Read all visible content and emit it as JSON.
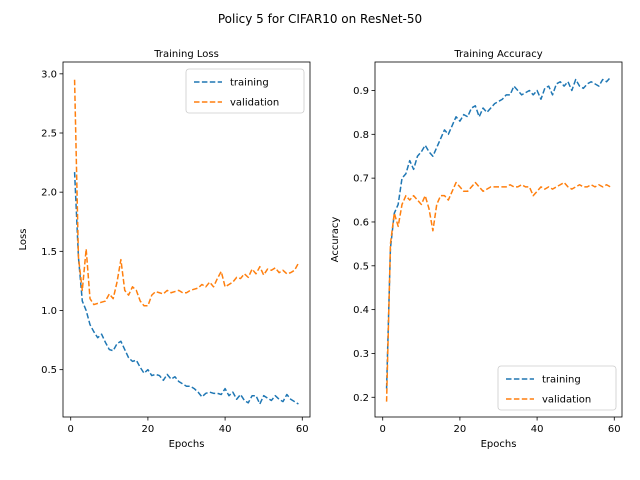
{
  "suptitle": "Policy 5 for CIFAR10 on ResNet-50",
  "chart_data": [
    {
      "type": "line",
      "title": "Training Loss",
      "xlabel": "Epochs",
      "ylabel": "Loss",
      "xlim": [
        -2,
        62
      ],
      "ylim": [
        0.1,
        3.1
      ],
      "xticks": [
        0,
        20,
        40,
        60
      ],
      "yticks": [
        0.5,
        1.0,
        1.5,
        2.0,
        2.5,
        3.0
      ],
      "xtick_labels": [
        "0",
        "20",
        "40",
        "60"
      ],
      "ytick_labels": [
        "0.5",
        "1.0",
        "1.5",
        "2.0",
        "2.5",
        "3.0"
      ],
      "legend_placement": "upper right",
      "grid": false,
      "x": [
        1,
        2,
        3,
        4,
        5,
        6,
        7,
        8,
        9,
        10,
        11,
        12,
        13,
        14,
        15,
        16,
        17,
        18,
        19,
        20,
        21,
        22,
        23,
        24,
        25,
        26,
        27,
        28,
        29,
        30,
        31,
        32,
        33,
        34,
        35,
        36,
        37,
        38,
        39,
        40,
        41,
        42,
        43,
        44,
        45,
        46,
        47,
        48,
        49,
        50,
        51,
        52,
        53,
        54,
        55,
        56,
        57,
        58,
        59
      ],
      "series": [
        {
          "name": "training",
          "color": "#1f77b4",
          "values": [
            2.17,
            1.45,
            1.08,
            1.0,
            0.88,
            0.82,
            0.77,
            0.8,
            0.73,
            0.67,
            0.66,
            0.72,
            0.74,
            0.67,
            0.6,
            0.57,
            0.58,
            0.52,
            0.47,
            0.5,
            0.45,
            0.46,
            0.45,
            0.41,
            0.46,
            0.42,
            0.44,
            0.4,
            0.38,
            0.36,
            0.36,
            0.34,
            0.31,
            0.27,
            0.3,
            0.31,
            0.3,
            0.3,
            0.29,
            0.34,
            0.28,
            0.31,
            0.25,
            0.29,
            0.24,
            0.22,
            0.28,
            0.28,
            0.21,
            0.28,
            0.26,
            0.24,
            0.28,
            0.25,
            0.23,
            0.29,
            0.25,
            0.23,
            0.21
          ]
        },
        {
          "name": "validation",
          "color": "#ff7f0e",
          "values": [
            2.95,
            1.45,
            1.17,
            1.52,
            1.1,
            1.05,
            1.06,
            1.07,
            1.08,
            1.14,
            1.1,
            1.24,
            1.43,
            1.17,
            1.13,
            1.2,
            1.17,
            1.08,
            1.04,
            1.04,
            1.13,
            1.16,
            1.15,
            1.14,
            1.17,
            1.15,
            1.16,
            1.17,
            1.15,
            1.15,
            1.17,
            1.18,
            1.19,
            1.22,
            1.2,
            1.24,
            1.2,
            1.27,
            1.33,
            1.2,
            1.22,
            1.24,
            1.28,
            1.27,
            1.31,
            1.28,
            1.35,
            1.31,
            1.37,
            1.3,
            1.35,
            1.34,
            1.36,
            1.32,
            1.34,
            1.31,
            1.32,
            1.34,
            1.4
          ]
        }
      ]
    },
    {
      "type": "line",
      "title": "Training Accuracy",
      "xlabel": "Epochs",
      "ylabel": "Accuracy",
      "xlim": [
        -2,
        62
      ],
      "ylim": [
        0.155,
        0.965
      ],
      "xticks": [
        0,
        20,
        40,
        60
      ],
      "yticks": [
        0.2,
        0.3,
        0.4,
        0.5,
        0.6,
        0.7,
        0.8,
        0.9
      ],
      "xtick_labels": [
        "0",
        "20",
        "40",
        "60"
      ],
      "ytick_labels": [
        "0.2",
        "0.3",
        "0.4",
        "0.5",
        "0.6",
        "0.7",
        "0.8",
        "0.9"
      ],
      "legend_placement": "lower right",
      "grid": false,
      "x": [
        1,
        2,
        3,
        4,
        5,
        6,
        7,
        8,
        9,
        10,
        11,
        12,
        13,
        14,
        15,
        16,
        17,
        18,
        19,
        20,
        21,
        22,
        23,
        24,
        25,
        26,
        27,
        28,
        29,
        30,
        31,
        32,
        33,
        34,
        35,
        36,
        37,
        38,
        39,
        40,
        41,
        42,
        43,
        44,
        45,
        46,
        47,
        48,
        49,
        50,
        51,
        52,
        53,
        54,
        55,
        56,
        57,
        58,
        59
      ],
      "series": [
        {
          "name": "training",
          "color": "#1f77b4",
          "values": [
            0.22,
            0.54,
            0.62,
            0.64,
            0.7,
            0.71,
            0.74,
            0.72,
            0.75,
            0.76,
            0.775,
            0.76,
            0.75,
            0.77,
            0.79,
            0.81,
            0.8,
            0.82,
            0.84,
            0.83,
            0.845,
            0.84,
            0.86,
            0.865,
            0.84,
            0.86,
            0.85,
            0.86,
            0.87,
            0.875,
            0.88,
            0.89,
            0.89,
            0.91,
            0.9,
            0.89,
            0.895,
            0.9,
            0.89,
            0.9,
            0.88,
            0.905,
            0.91,
            0.89,
            0.915,
            0.92,
            0.91,
            0.92,
            0.9,
            0.925,
            0.91,
            0.905,
            0.915,
            0.92,
            0.915,
            0.91,
            0.925,
            0.92,
            0.93
          ]
        },
        {
          "name": "validation",
          "color": "#ff7f0e",
          "values": [
            0.19,
            0.55,
            0.62,
            0.59,
            0.64,
            0.66,
            0.65,
            0.66,
            0.65,
            0.64,
            0.66,
            0.63,
            0.58,
            0.64,
            0.66,
            0.66,
            0.65,
            0.67,
            0.69,
            0.68,
            0.67,
            0.67,
            0.68,
            0.69,
            0.68,
            0.67,
            0.675,
            0.68,
            0.68,
            0.68,
            0.68,
            0.68,
            0.685,
            0.68,
            0.68,
            0.685,
            0.68,
            0.68,
            0.66,
            0.67,
            0.68,
            0.675,
            0.68,
            0.675,
            0.68,
            0.685,
            0.69,
            0.68,
            0.675,
            0.68,
            0.685,
            0.68,
            0.68,
            0.685,
            0.68,
            0.685,
            0.68,
            0.685,
            0.68
          ]
        }
      ]
    }
  ]
}
